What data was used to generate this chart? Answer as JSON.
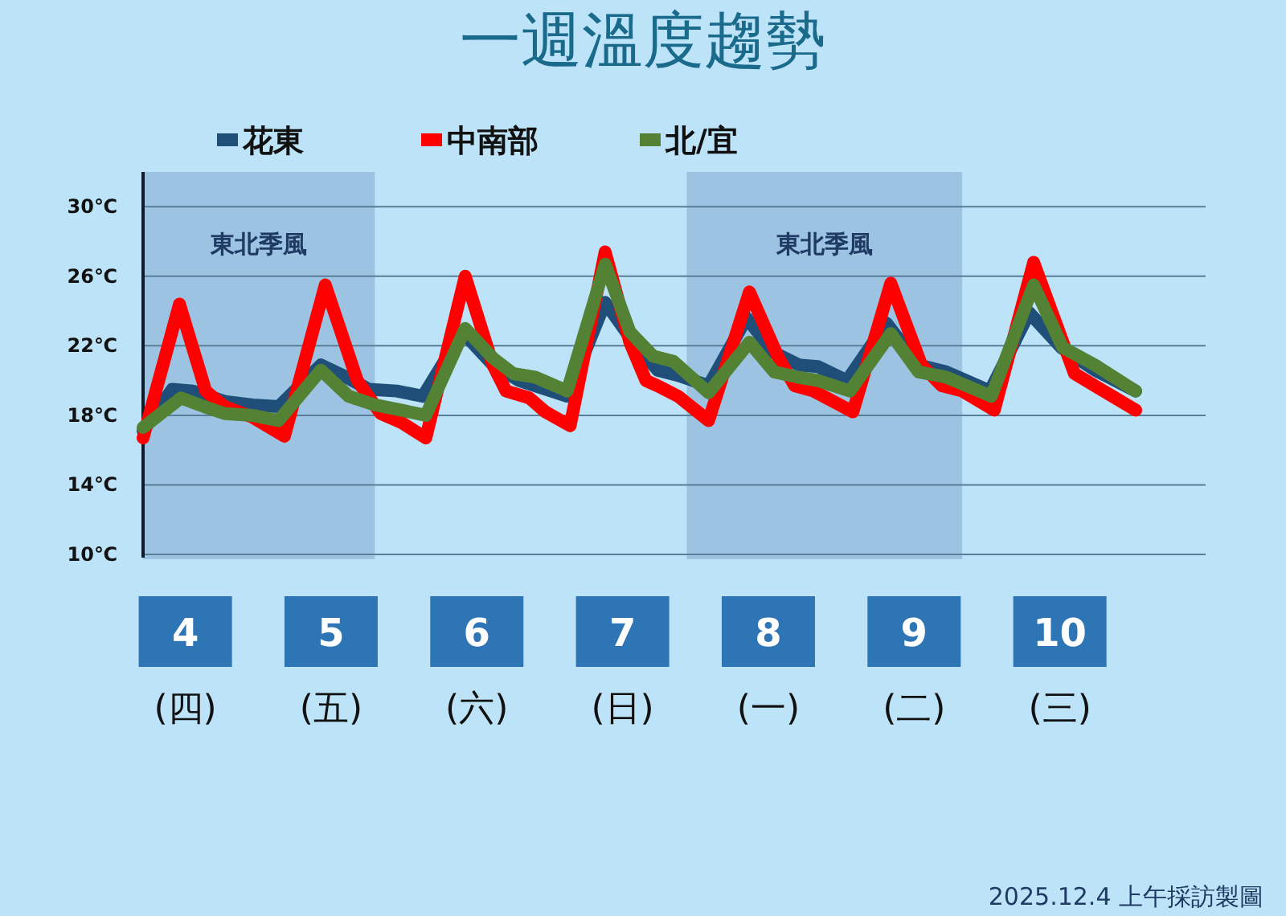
{
  "chart_data": {
    "type": "line",
    "title": "一週溫度趨勢",
    "legend": "top",
    "grid": "y",
    "marker": "none",
    "line_style": "solid",
    "xlim": [
      3.71,
      11
    ],
    "ylim": [
      10,
      32
    ],
    "xticks": [
      {
        "value": 4,
        "label": "4\n(四)"
      },
      {
        "value": 5,
        "label": "5\n(五)"
      },
      {
        "value": 6,
        "label": "6\n(六)"
      },
      {
        "value": 7,
        "label": "7\n(日)"
      },
      {
        "value": 8,
        "label": "8\n(一)"
      },
      {
        "value": 9,
        "label": "9\n(二)"
      },
      {
        "value": 10,
        "label": "10\n(三)"
      }
    ],
    "yticks": [
      {
        "value": 10,
        "label": "10℃"
      },
      {
        "value": 14,
        "label": "14℃"
      },
      {
        "value": 18,
        "label": "18℃"
      },
      {
        "value": 22,
        "label": "22℃"
      },
      {
        "value": 26,
        "label": "26℃"
      },
      {
        "value": 30,
        "label": "30℃"
      }
    ],
    "bands": [
      {
        "axis": "x",
        "from": 3.71,
        "to": 5.3,
        "label": "東北季風",
        "color": "#9dc3e2"
      },
      {
        "axis": "x",
        "from": 7.44,
        "to": 9.33,
        "label": "東北季風",
        "color": "#9dc3e2"
      }
    ],
    "series": [
      {
        "name": "花東",
        "color": "#1f4e79",
        "x": [
          3.71,
          3.91,
          4.05,
          4.27,
          4.46,
          4.64,
          4.93,
          5.08,
          5.26,
          5.45,
          5.63,
          5.9,
          6.11,
          6.29,
          6.62,
          6.88,
          7.05,
          7.24,
          7.38,
          7.59,
          7.85,
          8.04,
          8.21,
          8.34,
          8.54,
          8.81,
          9.03,
          9.22,
          9.52,
          9.79,
          10.01,
          10.24,
          10.52
        ],
        "values": [
          17.1,
          19.5,
          19.4,
          18.8,
          18.6,
          18.5,
          20.9,
          20.3,
          19.5,
          19.4,
          19.1,
          22.8,
          20.9,
          20.0,
          19.1,
          24.5,
          22.5,
          20.6,
          20.3,
          19.7,
          23.6,
          21.6,
          20.9,
          20.8,
          20.0,
          23.3,
          20.9,
          20.5,
          19.4,
          23.9,
          21.9,
          20.6,
          19.4
        ]
      },
      {
        "name": "中南部",
        "color": "#ff0000",
        "x": [
          3.71,
          3.96,
          4.14,
          4.27,
          4.46,
          4.68,
          4.96,
          5.18,
          5.34,
          5.48,
          5.65,
          5.92,
          6.11,
          6.2,
          6.36,
          6.47,
          6.64,
          6.88,
          7.05,
          7.16,
          7.24,
          7.38,
          7.59,
          7.87,
          8.07,
          8.18,
          8.31,
          8.58,
          8.84,
          9.05,
          9.19,
          9.33,
          9.55,
          9.82,
          10.1,
          10.24,
          10.52
        ],
        "values": [
          16.7,
          24.4,
          19.4,
          18.5,
          17.9,
          16.8,
          25.5,
          20.0,
          18.1,
          17.6,
          16.7,
          26.0,
          20.9,
          19.4,
          19.0,
          18.2,
          17.4,
          27.4,
          22.2,
          20.0,
          19.7,
          19.1,
          17.7,
          25.1,
          21.3,
          19.7,
          19.4,
          18.2,
          25.6,
          20.9,
          19.7,
          19.4,
          18.3,
          26.8,
          20.4,
          19.7,
          18.3
        ]
      },
      {
        "name": "北/宜",
        "color": "#548235",
        "x": [
          3.71,
          3.97,
          4.13,
          4.27,
          4.46,
          4.64,
          4.93,
          5.12,
          5.3,
          5.48,
          5.65,
          5.92,
          6.11,
          6.25,
          6.4,
          6.62,
          6.88,
          7.05,
          7.21,
          7.35,
          7.59,
          7.87,
          8.04,
          8.2,
          8.34,
          8.56,
          8.84,
          9.03,
          9.22,
          9.53,
          9.82,
          10.02,
          10.24,
          10.52
        ],
        "values": [
          17.3,
          19.0,
          18.5,
          18.1,
          18.0,
          17.7,
          20.6,
          19.1,
          18.6,
          18.3,
          18.0,
          23.0,
          21.3,
          20.4,
          20.2,
          19.4,
          26.7,
          22.8,
          21.4,
          21.1,
          19.3,
          22.2,
          20.5,
          20.2,
          20.0,
          19.4,
          22.7,
          20.5,
          20.2,
          19.1,
          25.5,
          21.9,
          20.9,
          19.4
        ]
      }
    ],
    "annotations": [
      "2025.12.4 上午採訪製圖"
    ]
  }
}
